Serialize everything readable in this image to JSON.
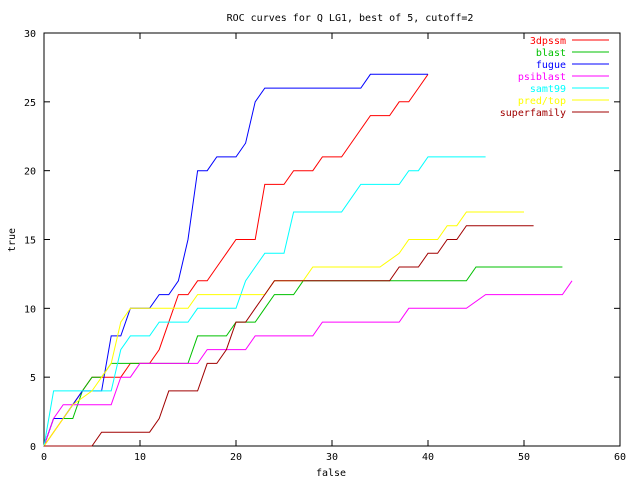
{
  "chart_data": {
    "type": "line",
    "title": "ROC curves for Q LG1, best of 5, cutoff=2",
    "xlabel": "false",
    "ylabel": "true",
    "xlim": [
      0,
      60
    ],
    "ylim": [
      0,
      30
    ],
    "xticks": [
      "0",
      "10",
      "20",
      "30",
      "40",
      "50",
      "60"
    ],
    "yticks": [
      "0",
      "5",
      "10",
      "15",
      "20",
      "25",
      "30"
    ],
    "grid": false,
    "legend_position": "top-right",
    "series": [
      {
        "name": "3dpssm",
        "color": "#ff0000",
        "points": [
          [
            0,
            0
          ],
          [
            1,
            1
          ],
          [
            2,
            2
          ],
          [
            3,
            3
          ],
          [
            4,
            4
          ],
          [
            5,
            5
          ],
          [
            6,
            5
          ],
          [
            7,
            5
          ],
          [
            8,
            5
          ],
          [
            9,
            6
          ],
          [
            10,
            6
          ],
          [
            11,
            6
          ],
          [
            12,
            7
          ],
          [
            13,
            9
          ],
          [
            14,
            11
          ],
          [
            15,
            11
          ],
          [
            16,
            12
          ],
          [
            17,
            12
          ],
          [
            18,
            13
          ],
          [
            19,
            14
          ],
          [
            20,
            15
          ],
          [
            21,
            15
          ],
          [
            22,
            15
          ],
          [
            23,
            19
          ],
          [
            24,
            19
          ],
          [
            25,
            19
          ],
          [
            26,
            20
          ],
          [
            27,
            20
          ],
          [
            28,
            20
          ],
          [
            29,
            21
          ],
          [
            30,
            21
          ],
          [
            31,
            21
          ],
          [
            32,
            22
          ],
          [
            33,
            23
          ],
          [
            34,
            24
          ],
          [
            35,
            24
          ],
          [
            36,
            24
          ],
          [
            37,
            25
          ],
          [
            38,
            25
          ],
          [
            39,
            26
          ],
          [
            40,
            27
          ]
        ]
      },
      {
        "name": "blast",
        "color": "#00c000",
        "points": [
          [
            0,
            0
          ],
          [
            1,
            2
          ],
          [
            2,
            2
          ],
          [
            3,
            2
          ],
          [
            4,
            4
          ],
          [
            5,
            5
          ],
          [
            6,
            5
          ],
          [
            7,
            6
          ],
          [
            8,
            6
          ],
          [
            9,
            6
          ],
          [
            10,
            6
          ],
          [
            11,
            6
          ],
          [
            12,
            6
          ],
          [
            13,
            6
          ],
          [
            14,
            6
          ],
          [
            15,
            6
          ],
          [
            16,
            8
          ],
          [
            17,
            8
          ],
          [
            18,
            8
          ],
          [
            19,
            8
          ],
          [
            20,
            9
          ],
          [
            21,
            9
          ],
          [
            22,
            9
          ],
          [
            23,
            10
          ],
          [
            24,
            11
          ],
          [
            25,
            11
          ],
          [
            26,
            11
          ],
          [
            27,
            12
          ],
          [
            28,
            12
          ],
          [
            30,
            12
          ],
          [
            35,
            12
          ],
          [
            40,
            12
          ],
          [
            44,
            12
          ],
          [
            45,
            13
          ],
          [
            50,
            13
          ],
          [
            54,
            13
          ]
        ]
      },
      {
        "name": "fugue",
        "color": "#0000ff",
        "points": [
          [
            0,
            0
          ],
          [
            1,
            2
          ],
          [
            2,
            2
          ],
          [
            3,
            3
          ],
          [
            4,
            4
          ],
          [
            5,
            4
          ],
          [
            6,
            4
          ],
          [
            7,
            8
          ],
          [
            8,
            8
          ],
          [
            9,
            10
          ],
          [
            10,
            10
          ],
          [
            11,
            10
          ],
          [
            12,
            11
          ],
          [
            13,
            11
          ],
          [
            14,
            12
          ],
          [
            15,
            15
          ],
          [
            16,
            20
          ],
          [
            17,
            20
          ],
          [
            18,
            21
          ],
          [
            19,
            21
          ],
          [
            20,
            21
          ],
          [
            21,
            22
          ],
          [
            22,
            25
          ],
          [
            23,
            26
          ],
          [
            24,
            26
          ],
          [
            28,
            26
          ],
          [
            33,
            26
          ],
          [
            34,
            27
          ],
          [
            36,
            27
          ],
          [
            40,
            27
          ]
        ]
      },
      {
        "name": "psiblast",
        "color": "#ff00ff",
        "points": [
          [
            0,
            0
          ],
          [
            1,
            2
          ],
          [
            2,
            3
          ],
          [
            3,
            3
          ],
          [
            5,
            3
          ],
          [
            7,
            3
          ],
          [
            8,
            5
          ],
          [
            9,
            5
          ],
          [
            10,
            6
          ],
          [
            12,
            6
          ],
          [
            14,
            6
          ],
          [
            15,
            6
          ],
          [
            16,
            6
          ],
          [
            17,
            7
          ],
          [
            19,
            7
          ],
          [
            21,
            7
          ],
          [
            22,
            8
          ],
          [
            24,
            8
          ],
          [
            26,
            8
          ],
          [
            28,
            8
          ],
          [
            29,
            9
          ],
          [
            31,
            9
          ],
          [
            33,
            9
          ],
          [
            35,
            9
          ],
          [
            37,
            9
          ],
          [
            38,
            10
          ],
          [
            40,
            10
          ],
          [
            42,
            10
          ],
          [
            44,
            10
          ],
          [
            46,
            11
          ],
          [
            48,
            11
          ],
          [
            50,
            11
          ],
          [
            52,
            11
          ],
          [
            54,
            11
          ],
          [
            55,
            12
          ]
        ]
      },
      {
        "name": "samt99",
        "color": "#00ffff",
        "points": [
          [
            0,
            0
          ],
          [
            1,
            4
          ],
          [
            2,
            4
          ],
          [
            3,
            4
          ],
          [
            4,
            4
          ],
          [
            5,
            4
          ],
          [
            7,
            4
          ],
          [
            8,
            7
          ],
          [
            9,
            8
          ],
          [
            10,
            8
          ],
          [
            11,
            8
          ],
          [
            12,
            9
          ],
          [
            13,
            9
          ],
          [
            14,
            9
          ],
          [
            15,
            9
          ],
          [
            16,
            10
          ],
          [
            17,
            10
          ],
          [
            18,
            10
          ],
          [
            19,
            10
          ],
          [
            20,
            10
          ],
          [
            21,
            12
          ],
          [
            22,
            13
          ],
          [
            23,
            14
          ],
          [
            24,
            14
          ],
          [
            25,
            14
          ],
          [
            26,
            17
          ],
          [
            27,
            17
          ],
          [
            28,
            17
          ],
          [
            29,
            17
          ],
          [
            30,
            17
          ],
          [
            31,
            17
          ],
          [
            32,
            18
          ],
          [
            33,
            19
          ],
          [
            34,
            19
          ],
          [
            35,
            19
          ],
          [
            36,
            19
          ],
          [
            37,
            19
          ],
          [
            38,
            20
          ],
          [
            39,
            20
          ],
          [
            40,
            21
          ],
          [
            41,
            21
          ],
          [
            46,
            21
          ]
        ]
      },
      {
        "name": "pred/top",
        "color": "#ffff00",
        "points": [
          [
            0,
            0
          ],
          [
            1,
            1
          ],
          [
            2,
            2
          ],
          [
            3,
            3
          ],
          [
            5,
            4
          ],
          [
            6,
            5
          ],
          [
            7,
            6
          ],
          [
            8,
            9
          ],
          [
            9,
            10
          ],
          [
            10,
            10
          ],
          [
            11,
            10
          ],
          [
            12,
            10
          ],
          [
            13,
            10
          ],
          [
            14,
            10
          ],
          [
            15,
            10
          ],
          [
            16,
            11
          ],
          [
            17,
            11
          ],
          [
            18,
            11
          ],
          [
            19,
            11
          ],
          [
            20,
            11
          ],
          [
            22,
            11
          ],
          [
            23,
            11
          ],
          [
            24,
            12
          ],
          [
            25,
            12
          ],
          [
            26,
            12
          ],
          [
            27,
            12
          ],
          [
            28,
            13
          ],
          [
            29,
            13
          ],
          [
            30,
            13
          ],
          [
            32,
            13
          ],
          [
            33,
            13
          ],
          [
            35,
            13
          ],
          [
            37,
            14
          ],
          [
            38,
            15
          ],
          [
            39,
            15
          ],
          [
            40,
            15
          ],
          [
            41,
            15
          ],
          [
            42,
            16
          ],
          [
            43,
            16
          ],
          [
            44,
            17
          ],
          [
            45,
            17
          ],
          [
            50,
            17
          ]
        ]
      },
      {
        "name": "superfamily",
        "color": "#a00000",
        "points": [
          [
            0,
            0
          ],
          [
            5,
            0
          ],
          [
            6,
            1
          ],
          [
            7,
            1
          ],
          [
            8,
            1
          ],
          [
            9,
            1
          ],
          [
            10,
            1
          ],
          [
            11,
            1
          ],
          [
            12,
            2
          ],
          [
            13,
            4
          ],
          [
            14,
            4
          ],
          [
            15,
            4
          ],
          [
            16,
            4
          ],
          [
            17,
            6
          ],
          [
            18,
            6
          ],
          [
            19,
            7
          ],
          [
            20,
            9
          ],
          [
            21,
            9
          ],
          [
            22,
            10
          ],
          [
            23,
            11
          ],
          [
            24,
            12
          ],
          [
            25,
            12
          ],
          [
            26,
            12
          ],
          [
            27,
            12
          ],
          [
            28,
            12
          ],
          [
            30,
            12
          ],
          [
            32,
            12
          ],
          [
            34,
            12
          ],
          [
            35,
            12
          ],
          [
            36,
            12
          ],
          [
            37,
            13
          ],
          [
            38,
            13
          ],
          [
            39,
            13
          ],
          [
            40,
            14
          ],
          [
            41,
            14
          ],
          [
            42,
            15
          ],
          [
            43,
            15
          ],
          [
            44,
            16
          ],
          [
            45,
            16
          ],
          [
            51,
            16
          ]
        ]
      }
    ]
  }
}
